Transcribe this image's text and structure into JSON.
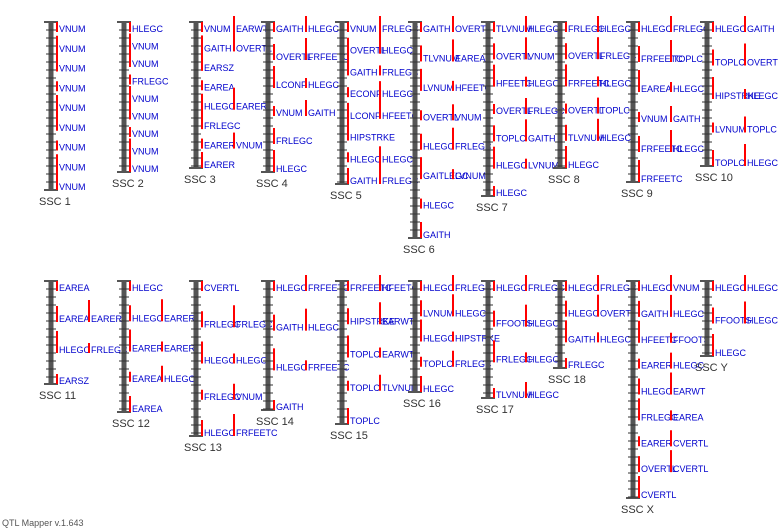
{
  "app": {
    "version_label": "QTL Mapper v.1.643"
  },
  "colors": {
    "chromosome": "#555555",
    "tick": "#333333",
    "qtl_bar": "#ff0000",
    "qtl_text": "#0000cc",
    "chrom_label": "#333333"
  },
  "chromosomes": [
    {
      "name": "SSC 1",
      "rows": [
        [
          "VNUM"
        ],
        [
          "VNUM"
        ],
        [
          "VNUM"
        ],
        [
          "VNUM"
        ],
        [
          "VNUM"
        ],
        [
          "VNUM"
        ],
        [
          "VNUM"
        ],
        [
          "VNUM"
        ],
        [
          "VNUM"
        ]
      ]
    },
    {
      "name": "SSC 2",
      "rows": [
        [
          "HLEGC"
        ],
        [
          "VNUM"
        ],
        [
          "VNUM"
        ],
        [
          "FRLEGC"
        ],
        [
          "VNUM"
        ],
        [
          "VNUM"
        ],
        [
          "VNUM"
        ],
        [
          "VNUM"
        ],
        [
          "VNUM"
        ]
      ]
    },
    {
      "name": "SSC 3",
      "rows": [
        [
          "VNUM",
          "EARWT"
        ],
        [
          "GAITH",
          "OVERTL"
        ],
        [
          "EARSZ"
        ],
        [
          "EAREA"
        ],
        [
          "HLEGC",
          "EARER"
        ],
        [
          "FRLEGC"
        ],
        [
          "EARER",
          "VNUM"
        ],
        [
          "EARER"
        ]
      ]
    },
    {
      "name": "SSC 4",
      "rows": [
        [
          "GAITH",
          "HLEGC"
        ],
        [
          "OVERTL",
          "FRFEETC"
        ],
        [
          "LCONF",
          "HLEGC"
        ],
        [
          "VNUM",
          "GAITH"
        ],
        [
          "FRLEGC"
        ],
        [
          "HLEGC"
        ]
      ]
    },
    {
      "name": "SSC 5",
      "rows": [
        [
          "VNUM",
          "FRLEGC"
        ],
        [
          "OVERTL",
          "HLEGC"
        ],
        [
          "GAITH",
          "FRLEGC"
        ],
        [
          "ECONF",
          "HLEGC"
        ],
        [
          "LCONF",
          "HFEETC"
        ],
        [
          "HIPSTRKE"
        ],
        [
          "HLEGC",
          "HLEGC"
        ],
        [
          "GAITH",
          "FRLEGC"
        ]
      ]
    },
    {
      "name": "SSC 6",
      "rows": [
        [
          "GAITH",
          "OVERTL"
        ],
        [
          "TLVNUM",
          "EAREA"
        ],
        [
          "LVNUM",
          "HFEETC"
        ],
        [
          "OVERTL",
          "VNUM"
        ],
        [
          "HLEGC",
          "FRLEGC"
        ],
        [
          "GAITLEGC",
          "LVNUM"
        ],
        [
          "HLEGC"
        ],
        [
          "GAITH"
        ]
      ]
    },
    {
      "name": "SSC 7",
      "rows": [
        [
          "TLVNUM",
          "HLEGC"
        ],
        [
          "OVERTL",
          "VNUM"
        ],
        [
          "HFEETC",
          "HLEGC"
        ],
        [
          "OVERTL",
          "FRLEGC"
        ],
        [
          "TOPLC",
          "GAITH"
        ],
        [
          "HLEGC",
          "LVNUM"
        ],
        [
          "HLEGC"
        ]
      ]
    },
    {
      "name": "SSC 8",
      "rows": [
        [
          "FRLEGC",
          "HLEGC"
        ],
        [
          "OVERTL",
          "FRLEGC"
        ],
        [
          "FRFEETC",
          "HLEGC"
        ],
        [
          "OVERTL",
          "TOPLC"
        ],
        [
          "TLVNUM",
          "HLEGC"
        ],
        [
          "HLEGC"
        ]
      ]
    },
    {
      "name": "SSC 9",
      "rows": [
        [
          "HLEGC",
          "FRLEGC"
        ],
        [
          "FRFEETC",
          "TOPLC"
        ],
        [
          "EAREA",
          "HLEGC"
        ],
        [
          "VNUM",
          "GAITH"
        ],
        [
          "FRFEETC",
          "HLEGC"
        ],
        [
          "FRFEETC"
        ]
      ]
    },
    {
      "name": "SSC 10",
      "rows": [
        [
          "HLEGC",
          "GAITH"
        ],
        [
          "TOPLC",
          "OVERTL"
        ],
        [
          "HIPSTRKE",
          "HLEGC"
        ],
        [
          "LVNUM",
          "TOPLC"
        ],
        [
          "TOPLC",
          "HLEGC"
        ]
      ]
    },
    {
      "name": "SSC 11",
      "rows": [
        [
          "EAREA"
        ],
        [
          "EAREA",
          "EARER"
        ],
        [
          "HLEGC",
          "FRLEGC"
        ],
        [
          "EARSZ"
        ]
      ]
    },
    {
      "name": "SSC 12",
      "rows": [
        [
          "HLEGC"
        ],
        [
          "HLEGC",
          "EARER"
        ],
        [
          "EARER",
          "EARER"
        ],
        [
          "EAREA",
          "HLEGC"
        ],
        [
          "EAREA"
        ]
      ]
    },
    {
      "name": "SSC 13",
      "rows": [
        [
          "CVERTL"
        ],
        [
          "FRLEGC",
          "FRLEGC"
        ],
        [
          "HLEGC",
          "HLEGC"
        ],
        [
          "FRLEGC",
          "VNUM"
        ],
        [
          "HLEGC",
          "FRFEETC"
        ]
      ]
    },
    {
      "name": "SSC 14",
      "rows": [
        [
          "HLEGC",
          "FRFEETC"
        ],
        [
          "GAITH",
          "HLEGC"
        ],
        [
          "HLEGC",
          "FRFEETC"
        ],
        [
          "GAITH"
        ]
      ]
    },
    {
      "name": "SSC 15",
      "rows": [
        [
          "FRFEETC",
          "HFEETC"
        ],
        [
          "HIPSTRKE",
          "EARWT"
        ],
        [
          "TOPLC",
          "EARWT"
        ],
        [
          "TOPLC",
          "TLVNUM"
        ],
        [
          "TOPLC"
        ]
      ]
    },
    {
      "name": "SSC 16",
      "rows": [
        [
          "HLEGC",
          "FRLEGC"
        ],
        [
          "LVNUM",
          "HLEGC"
        ],
        [
          "HLEGC",
          "HIPSTRKE"
        ],
        [
          "TOPLC",
          "FRLEGC"
        ],
        [
          "HLEGC"
        ]
      ]
    },
    {
      "name": "SSC 17",
      "rows": [
        [
          "HLEGC",
          "FRLEGC"
        ],
        [
          "FFOOTS",
          "HLEGC"
        ],
        [
          "FRLEGC",
          "HLEGC"
        ],
        [
          "TLVNUM",
          "HLEGC"
        ]
      ]
    },
    {
      "name": "SSC 18",
      "rows": [
        [
          "HLEGC",
          "FRLEGC"
        ],
        [
          "HLEGC",
          "OVERTL"
        ],
        [
          "GAITH",
          "HLEGC"
        ],
        [
          "FRLEGC"
        ]
      ]
    },
    {
      "name": "SSC X",
      "rows": [
        [
          "HLEGC",
          "VNUM"
        ],
        [
          "GAITH",
          "HLEGC"
        ],
        [
          "HFEETC",
          "FFOOTS"
        ],
        [
          "EARER",
          "HLEGC"
        ],
        [
          "HLEGC",
          "EARWT"
        ],
        [
          "FRLEGC",
          "EAREA"
        ],
        [
          "EARER",
          "CVERTL"
        ],
        [
          "OVERTL",
          "CVERTL"
        ],
        [
          "CVERTL"
        ]
      ]
    },
    {
      "name": "SSC Y",
      "rows": [
        [
          "HLEGC",
          "HLEGC"
        ],
        [
          "FFOOTS",
          "HLEGC"
        ],
        [
          "HLEGC"
        ]
      ]
    }
  ]
}
